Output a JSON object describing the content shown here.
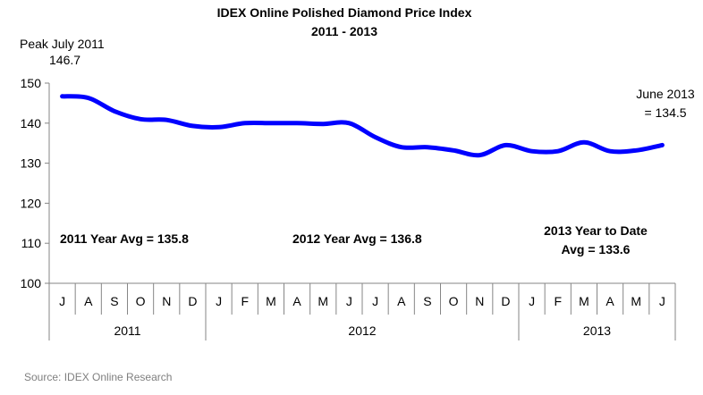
{
  "chart_data": {
    "type": "line",
    "title": "IDEX Online Polished Diamond Price Index",
    "subtitle": "2011 - 2013",
    "xlabel": "",
    "ylabel": "",
    "ylim": [
      100,
      150
    ],
    "yticks": [
      100,
      110,
      120,
      130,
      140,
      150
    ],
    "grid": false,
    "legend": "none",
    "line_color": "#0000ff",
    "categories": [
      "J",
      "A",
      "S",
      "O",
      "N",
      "D",
      "J",
      "F",
      "M",
      "A",
      "M",
      "J",
      "J",
      "A",
      "S",
      "O",
      "N",
      "D",
      "J",
      "F",
      "M",
      "A",
      "M",
      "J"
    ],
    "year_groups": [
      {
        "label": "2011",
        "count": 6
      },
      {
        "label": "2012",
        "count": 12
      },
      {
        "label": "2013",
        "count": 6
      }
    ],
    "series": [
      {
        "values": [
          146.7,
          146.3,
          143.0,
          141.0,
          140.8,
          139.3,
          139.0,
          140.0,
          140.0,
          140.0,
          139.8,
          140.0,
          136.5,
          134.0,
          134.0,
          133.2,
          132.0,
          134.5,
          133.0,
          133.0,
          135.2,
          133.0,
          133.2,
          134.5
        ]
      }
    ],
    "annotations": {
      "peak_line1": "Peak July 2011",
      "peak_line2": "146.7",
      "june_line1": "June 2013",
      "june_line2": "= 134.5",
      "avg2011": "2011 Year Avg = 135.8",
      "avg2012": "2012 Year Avg = 136.8",
      "avg2013_line1": "2013 Year to Date",
      "avg2013_line2": "Avg = 133.6"
    },
    "source": "Source: IDEX Online Research"
  }
}
